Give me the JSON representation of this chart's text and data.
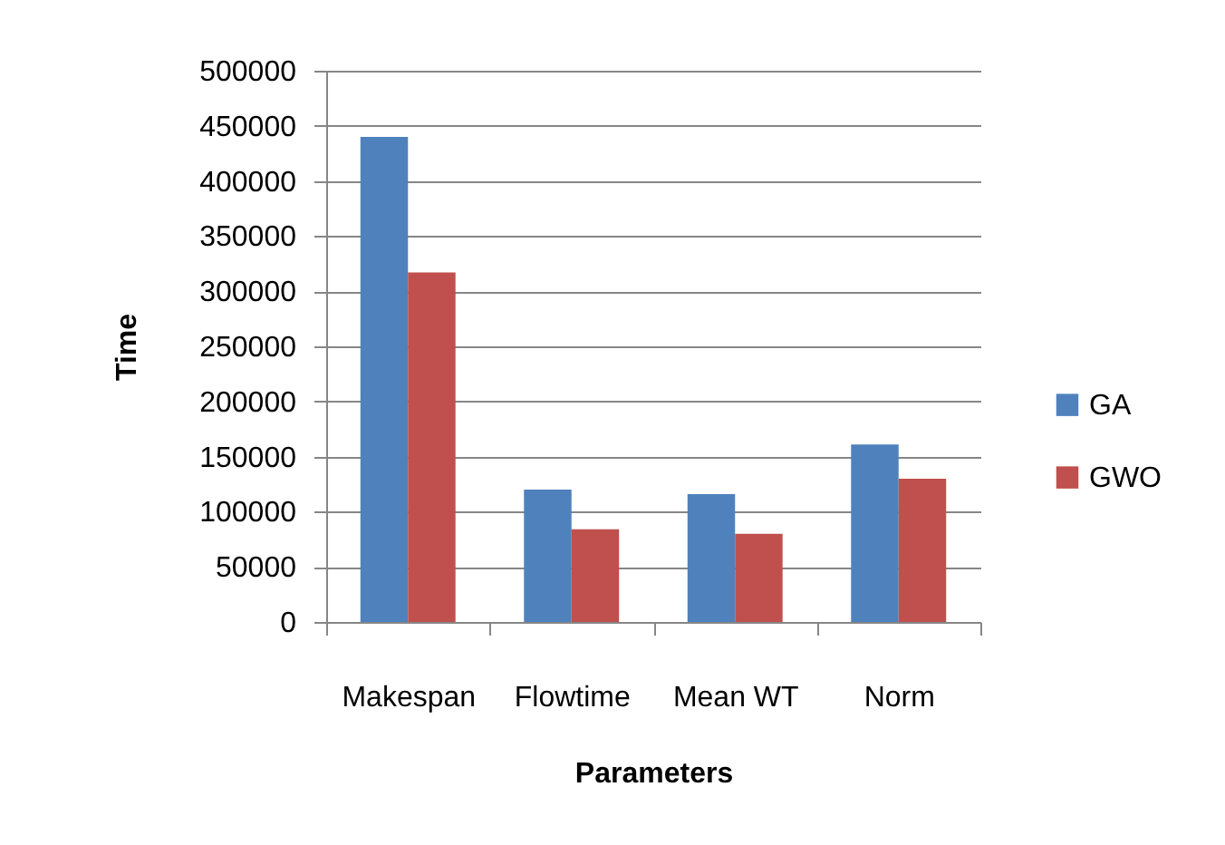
{
  "chart_data": {
    "type": "bar",
    "xlabel": "Parameters",
    "ylabel": "Time",
    "categories": [
      "Makespan",
      "Flowtime",
      "Mean WT",
      "Norm"
    ],
    "series": [
      {
        "name": "GA",
        "color": "#4f81bd",
        "values": [
          440000,
          120000,
          116000,
          161000
        ]
      },
      {
        "name": "GWO",
        "color": "#c0504d",
        "values": [
          317000,
          84000,
          80000,
          130000
        ]
      }
    ],
    "ylim": [
      0,
      500000
    ],
    "yticks": [
      0,
      50000,
      100000,
      150000,
      200000,
      250000,
      300000,
      350000,
      400000,
      450000,
      500000
    ],
    "grid": "y",
    "legend": "right"
  }
}
